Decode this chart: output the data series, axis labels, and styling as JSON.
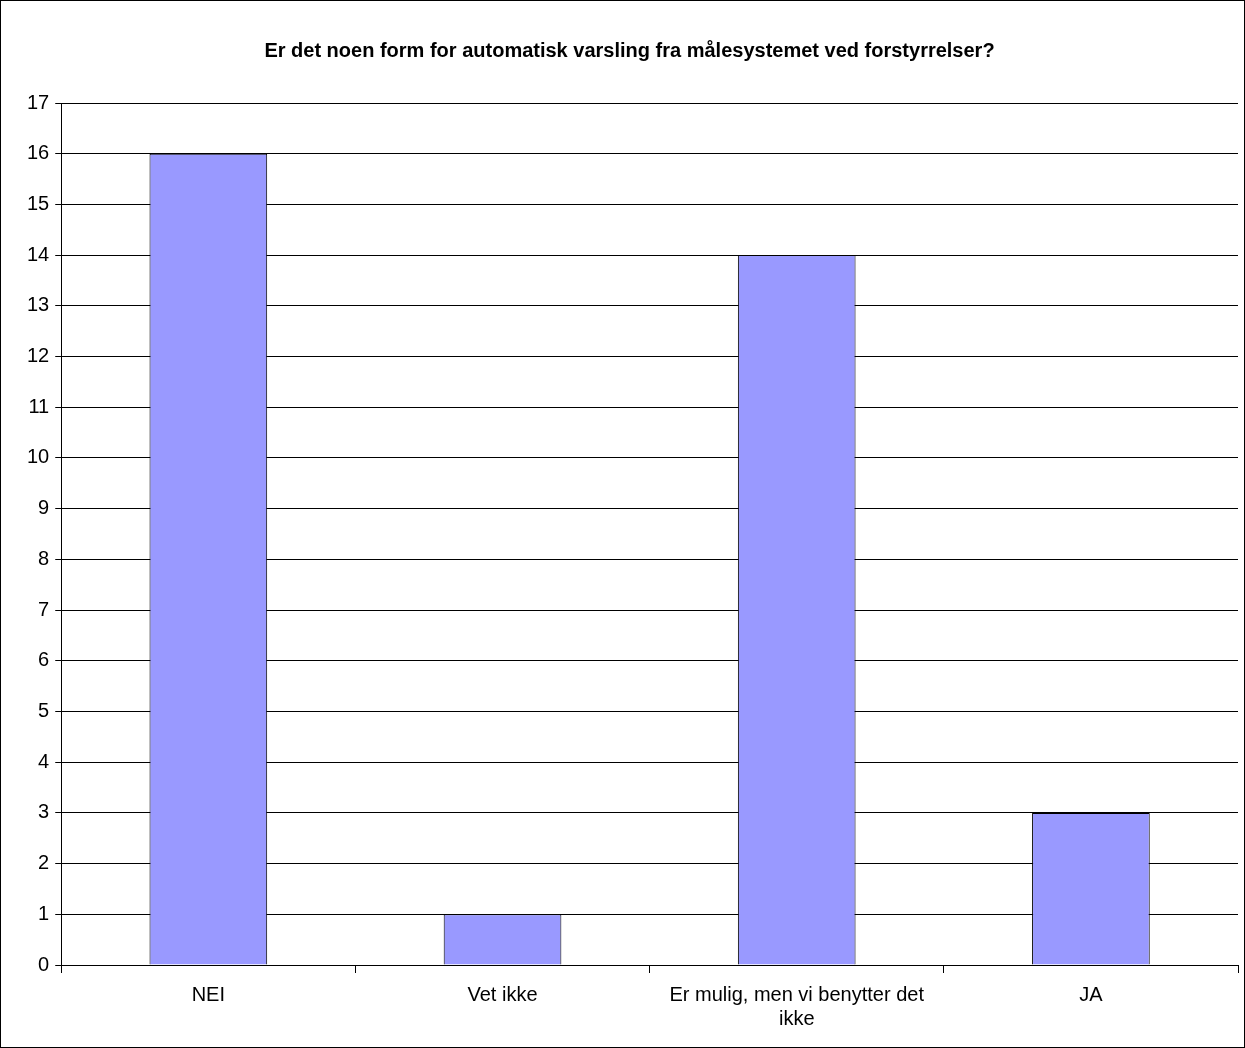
{
  "chart_data": {
    "type": "bar",
    "title": "Er det noen form for automatisk varsling fra målesystemet ved forstyrrelser?",
    "categories": [
      "NEI",
      "Vet ikke",
      "Er mulig, men vi benytter det ikke",
      "JA"
    ],
    "values": [
      16,
      1,
      14,
      3
    ],
    "color": "#9999ff",
    "ylim": [
      0,
      17
    ],
    "yticks": [
      0,
      1,
      2,
      3,
      4,
      5,
      6,
      7,
      8,
      9,
      10,
      11,
      12,
      13,
      14,
      15,
      16,
      17
    ],
    "grid": "y"
  }
}
